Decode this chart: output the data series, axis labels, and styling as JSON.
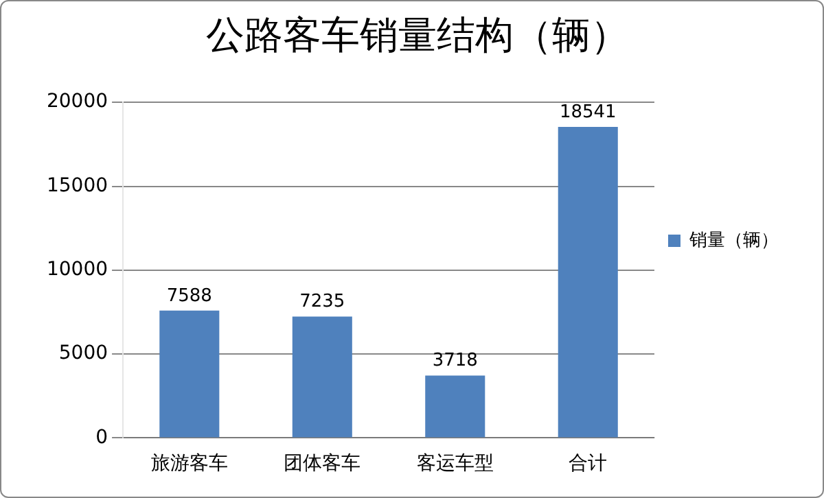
{
  "chart_data": {
    "type": "bar",
    "title": "公路客车销量结构（辆）",
    "categories": [
      "旅游客车",
      "团体客车",
      "客运车型",
      "合计"
    ],
    "series": [
      {
        "name": "销量（辆）",
        "color": "#4f81bd",
        "values": [
          7588,
          7235,
          3718,
          18541
        ]
      }
    ],
    "ylim": [
      0,
      20000
    ],
    "yticks": [
      0,
      5000,
      10000,
      15000,
      20000
    ],
    "grid": "y",
    "legend": "right",
    "data_labels": true
  }
}
